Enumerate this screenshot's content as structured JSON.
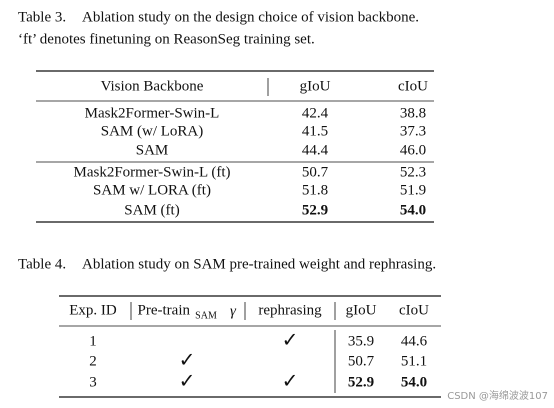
{
  "table3": {
    "caption": {
      "label": "Table 3.",
      "text": "Ablation study on the design choice of vision backbone.",
      "line2": "‘ft’ denotes finetuning on ReasonSeg training set."
    },
    "header": [
      "Vision Backbone",
      "gIoU",
      "cIoU"
    ],
    "groups": [
      [
        [
          "Mask2Former-Swin-L",
          "42.4",
          "38.8"
        ],
        [
          "SAM (w/ LoRA)",
          "41.5",
          "37.3"
        ],
        [
          "SAM",
          "44.4",
          "46.0"
        ]
      ],
      [
        [
          "Mask2Former-Swin-L (ft)",
          "50.7",
          "52.3"
        ],
        [
          "SAM w/ LORA (ft)",
          "51.8",
          "51.9"
        ],
        [
          "SAM (ft)",
          "52.9",
          "54.0"
        ]
      ]
    ]
  },
  "table4": {
    "caption": {
      "label": "Table 4.",
      "text": "Ablation study on SAM pre-trained weight and rephrasing."
    },
    "header": {
      "exp_id": "Exp. ID",
      "pretrain": {
        "text": "Pre-train",
        "subscript": "SAM",
        "symbol": "γ"
      },
      "rephrasing": "rephrasing",
      "giou": "gIoU",
      "ciou": "cIoU"
    },
    "rows": [
      {
        "exp_id": "1",
        "rephrasing": "✓",
        "giou": "35.9",
        "ciou": "44.6"
      },
      {
        "exp_id": "2",
        "pretrain": "✓",
        "giou": "50.7",
        "ciou": "51.1"
      },
      {
        "exp_id": "3",
        "pretrain": "✓",
        "rephrasing": "✓",
        "giou": "52.9",
        "ciou": "54.0"
      }
    ]
  },
  "watermark": "CSDN @海绵波波107"
}
